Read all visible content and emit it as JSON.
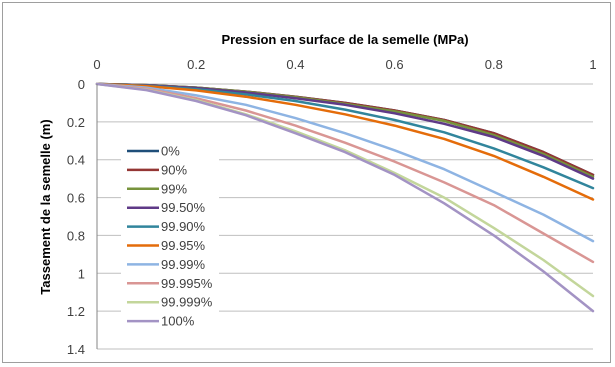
{
  "chart_data": {
    "type": "line",
    "title": "",
    "xlabel": "Pression en surface de la semelle (MPa)",
    "ylabel": "Tassement de la semelle (m)",
    "xlim": [
      0,
      1
    ],
    "ylim": [
      0,
      1.4
    ],
    "y_inverted": true,
    "x_axis_position": "top",
    "grid": "horizontal",
    "legend_position": "left",
    "x_ticks": [
      "0",
      "0.2",
      "0.4",
      "0.6",
      "0.8",
      "1"
    ],
    "y_ticks": [
      "0",
      "0.2",
      "0.4",
      "0.6",
      "0.8",
      "1",
      "1.2",
      "1.4"
    ],
    "x": [
      0,
      0.1,
      0.2,
      0.3,
      0.4,
      0.5,
      0.6,
      0.7,
      0.8,
      0.9,
      1.0
    ],
    "series": [
      {
        "name": "0%",
        "color": "#1f4e79",
        "values": [
          0,
          0.006,
          0.019,
          0.04,
          0.067,
          0.1,
          0.14,
          0.19,
          0.26,
          0.36,
          0.48
        ]
      },
      {
        "name": "90%",
        "color": "#943634",
        "values": [
          0,
          0.006,
          0.019,
          0.04,
          0.067,
          0.1,
          0.14,
          0.19,
          0.26,
          0.36,
          0.48
        ]
      },
      {
        "name": "99%",
        "color": "#77933c",
        "values": [
          0,
          0.006,
          0.019,
          0.041,
          0.069,
          0.105,
          0.145,
          0.195,
          0.27,
          0.37,
          0.49
        ]
      },
      {
        "name": "99.50%",
        "color": "#5f3a87",
        "values": [
          0,
          0.007,
          0.021,
          0.045,
          0.075,
          0.11,
          0.155,
          0.21,
          0.28,
          0.38,
          0.5
        ]
      },
      {
        "name": "99.90%",
        "color": "#31859c",
        "values": [
          0,
          0.009,
          0.027,
          0.055,
          0.09,
          0.135,
          0.19,
          0.255,
          0.34,
          0.44,
          0.55
        ]
      },
      {
        "name": "99.95%",
        "color": "#e46c0a",
        "values": [
          0,
          0.011,
          0.034,
          0.067,
          0.11,
          0.16,
          0.22,
          0.29,
          0.38,
          0.49,
          0.61
        ]
      },
      {
        "name": "99.99%",
        "color": "#8eb4e3",
        "values": [
          0,
          0.019,
          0.06,
          0.11,
          0.18,
          0.26,
          0.35,
          0.45,
          0.57,
          0.69,
          0.83
        ]
      },
      {
        "name": "99.995%",
        "color": "#d99694",
        "values": [
          0,
          0.025,
          0.075,
          0.14,
          0.22,
          0.31,
          0.41,
          0.52,
          0.64,
          0.79,
          0.94
        ]
      },
      {
        "name": "99.999%",
        "color": "#c3d69b",
        "values": [
          0,
          0.03,
          0.085,
          0.16,
          0.25,
          0.35,
          0.47,
          0.6,
          0.76,
          0.93,
          1.12
        ]
      },
      {
        "name": "100%",
        "color": "#a393c4",
        "values": [
          0,
          0.032,
          0.09,
          0.165,
          0.26,
          0.36,
          0.48,
          0.63,
          0.8,
          0.99,
          1.2
        ]
      }
    ]
  }
}
